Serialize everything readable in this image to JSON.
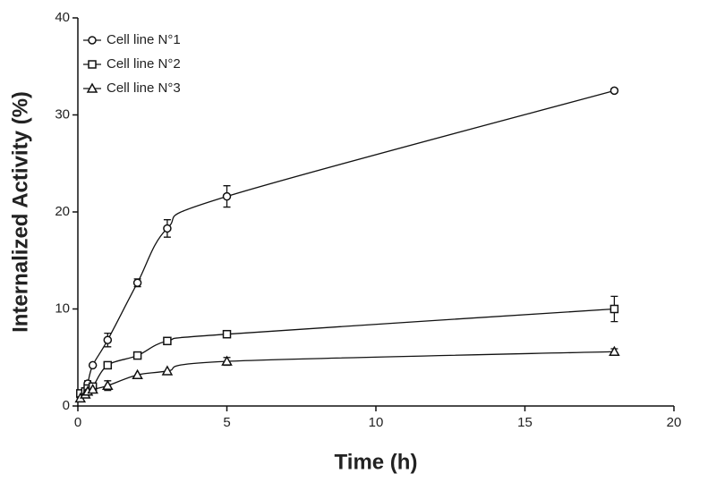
{
  "chart_data": {
    "type": "line",
    "x_label": "Time (h)",
    "y_label": "Internalized Activity (%)",
    "x": [
      0.083,
      0.25,
      0.33,
      0.5,
      1,
      2,
      3,
      5,
      18
    ],
    "series": [
      {
        "name": "Cell line N°1",
        "color": "#111111",
        "marker": "circle",
        "values": [
          1.0,
          1.5,
          2.3,
          4.2,
          6.8,
          12.7,
          18.3,
          21.6,
          32.5
        ],
        "errors": [
          null,
          null,
          0.3,
          null,
          0.7,
          0.4,
          0.9,
          1.1,
          0.2
        ]
      },
      {
        "name": "Cell line N°2",
        "color": "#111111",
        "marker": "square",
        "values": [
          1.3,
          1.5,
          1.8,
          2.0,
          4.2,
          5.2,
          6.7,
          7.4,
          10.0
        ],
        "errors": [
          null,
          null,
          null,
          null,
          null,
          null,
          null,
          null,
          1.3
        ]
      },
      {
        "name": "Cell line N°3",
        "color": "#111111",
        "marker": "triangle",
        "values": [
          0.8,
          1.2,
          1.5,
          1.7,
          2.1,
          3.2,
          3.6,
          4.6,
          5.6
        ],
        "errors": [
          null,
          null,
          null,
          null,
          0.5,
          null,
          null,
          0.4,
          0.3
        ]
      }
    ],
    "xlim": [
      0,
      20
    ],
    "xticks": [
      0,
      5,
      10,
      15,
      20
    ],
    "ylim": [
      0,
      40
    ],
    "yticks": [
      0,
      10,
      20,
      30,
      40
    ],
    "legend": "upper left"
  }
}
